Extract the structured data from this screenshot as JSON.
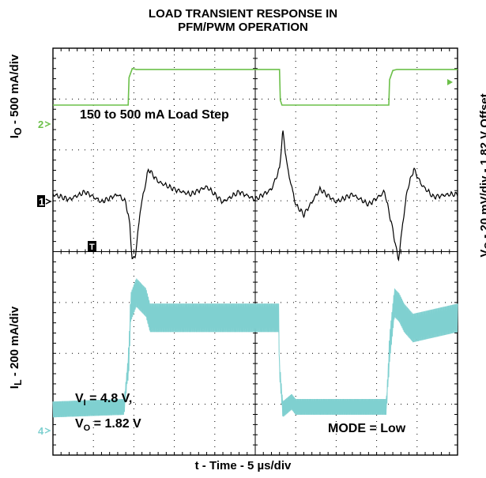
{
  "title_line1": "LOAD TRANSIENT RESPONSE IN",
  "title_line2": "PFM/PWM OPERATION",
  "xlabel": "t - Time - 5 µs/div",
  "ylabel_left_top": "I",
  "ylabel_left_top_sub": "O",
  "ylabel_left_top_rest": " - 500 mA/div",
  "ylabel_left_bottom": "I",
  "ylabel_left_bottom_sub": "L",
  "ylabel_left_bottom_rest": " - 200 mA/div",
  "ylabel_right": "V",
  "ylabel_right_sub": "O",
  "ylabel_right_rest": " - 20 mV/div - 1.82 V Offset",
  "annotations": {
    "load_step": "150 to 500 mA Load Step",
    "vi_label": "V",
    "vi_sub": "I",
    "vi_value": " = 4.8 V,",
    "vo_label": "V",
    "vo_sub": "O",
    "vo_value": " = 1.82 V",
    "mode": "MODE = Low"
  },
  "markers": {
    "ch1": "1",
    "ch2": "2",
    "ch4": "4",
    "trigger": "T"
  },
  "colors": {
    "ch_io": "#6cc04a",
    "ch_vo": "#000000",
    "ch_il": "#7fd0d0",
    "grid": "#000000",
    "background": "#ffffff"
  },
  "chart_data": {
    "type": "line",
    "grid": true,
    "divisions": {
      "x": 10,
      "y": 8
    },
    "x_unit": "µs",
    "x_per_div": 5,
    "x_range": [
      0,
      50
    ],
    "series": [
      {
        "name": "I_O",
        "per_div": "500 mA/div",
        "x": [
          0,
          9.3,
          9.4,
          9.8,
          10.3,
          28.0,
          28.1,
          28.3,
          31.8,
          41.5,
          41.6,
          42.0,
          42.5,
          50
        ],
        "y": [
          0.15,
          0.15,
          0.42,
          0.51,
          0.5,
          0.5,
          0.2,
          0.15,
          0.15,
          0.15,
          0.4,
          0.49,
          0.5,
          0.5
        ]
      },
      {
        "name": "V_O",
        "per_div": "20 mV/div",
        "x": [
          0,
          2,
          4,
          6,
          8,
          9.0,
          9.5,
          9.8,
          10.2,
          10.8,
          11.8,
          13,
          15,
          17,
          19,
          21,
          23,
          25,
          27,
          28.0,
          28.4,
          29.0,
          30,
          31,
          33,
          35,
          37,
          39,
          41,
          42.0,
          42.7,
          43.2,
          43.8,
          44.6,
          45.5,
          47,
          49,
          50
        ],
        "y": [
          0,
          -2,
          1,
          -3,
          0,
          -3,
          -12,
          -26,
          -24,
          -6,
          10,
          5,
          2,
          0,
          3,
          -3,
          1,
          -2,
          2,
          10,
          25,
          10,
          -4,
          -8,
          2,
          -3,
          0,
          -4,
          1,
          -14,
          -26,
          -12,
          2,
          10,
          4,
          -1,
          0,
          0
        ]
      },
      {
        "name": "I_L",
        "per_div": "200 mA/div",
        "x": [
          0,
          8.8,
          9.4,
          9.6,
          10.3,
          11.5,
          12.0,
          14,
          27.9,
          28.0,
          28.4,
          29.5,
          30,
          41.2,
          41.6,
          42.2,
          42.8,
          43.4,
          44.5,
          50
        ],
        "y": [
          0.14,
          0.15,
          0.35,
          0.54,
          0.6,
          0.56,
          0.5,
          0.5,
          0.5,
          0.3,
          0.14,
          0.17,
          0.15,
          0.15,
          0.38,
          0.56,
          0.54,
          0.5,
          0.46,
          0.5
        ]
      }
    ]
  }
}
